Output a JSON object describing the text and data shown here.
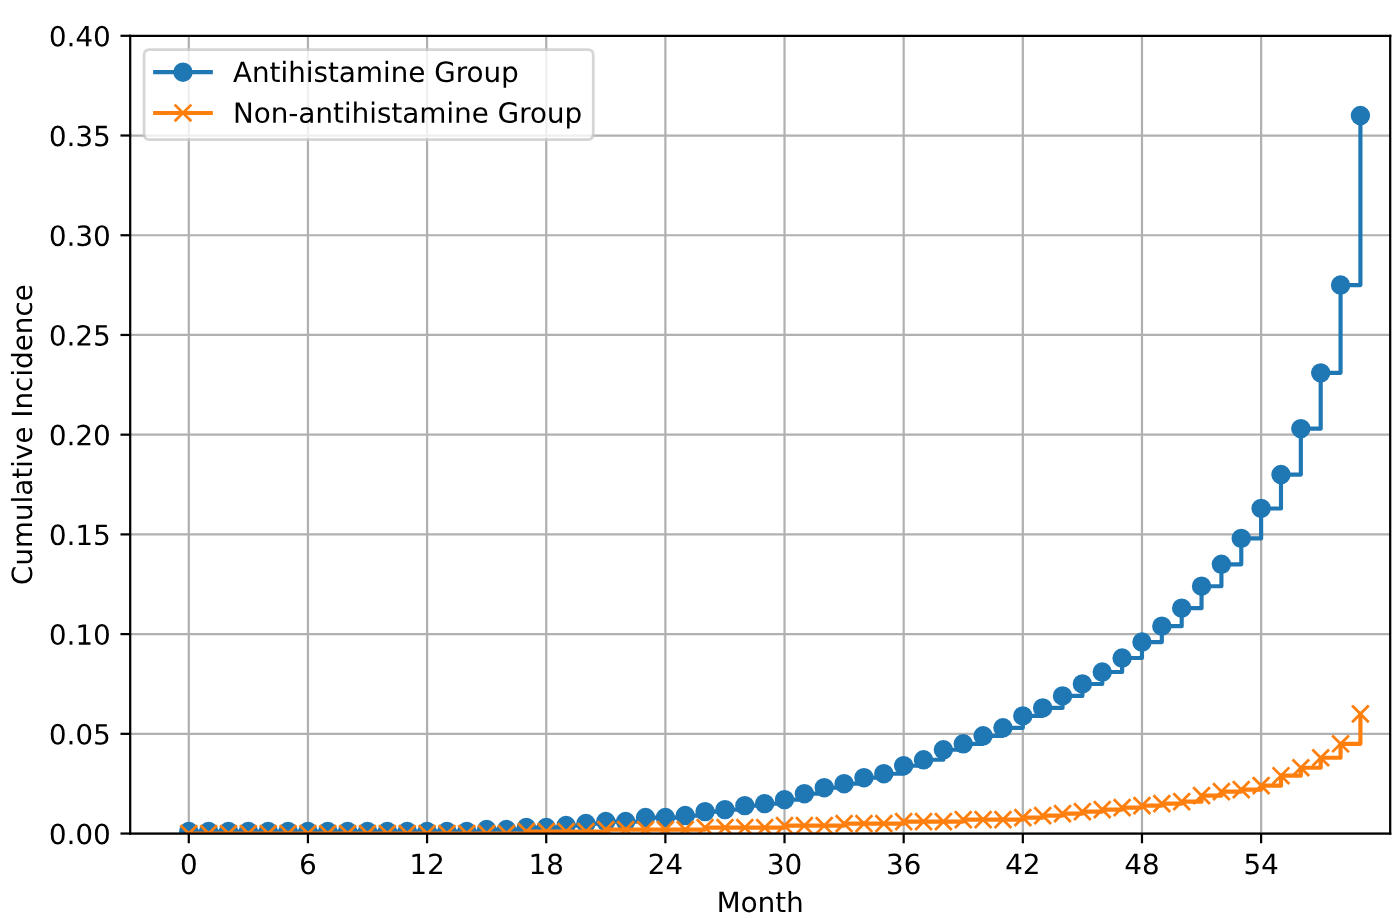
{
  "chart_data": {
    "type": "step",
    "xlabel": "Month",
    "ylabel": "Cumulative Incidence",
    "x": [
      0,
      1,
      2,
      3,
      4,
      5,
      6,
      7,
      8,
      9,
      10,
      11,
      12,
      13,
      14,
      15,
      16,
      17,
      18,
      19,
      20,
      21,
      22,
      23,
      24,
      25,
      26,
      27,
      28,
      29,
      30,
      31,
      32,
      33,
      34,
      35,
      36,
      37,
      38,
      39,
      40,
      41,
      42,
      43,
      44,
      45,
      46,
      47,
      48,
      49,
      50,
      51,
      52,
      53,
      54,
      55,
      56,
      57,
      58,
      59
    ],
    "series": [
      {
        "name": "Antihistamine Group",
        "color": "#1f77b4",
        "marker": "circle",
        "values": [
          0.001,
          0.001,
          0.001,
          0.001,
          0.001,
          0.001,
          0.001,
          0.001,
          0.001,
          0.001,
          0.001,
          0.001,
          0.001,
          0.001,
          0.001,
          0.002,
          0.002,
          0.003,
          0.003,
          0.004,
          0.005,
          0.006,
          0.006,
          0.008,
          0.008,
          0.009,
          0.011,
          0.012,
          0.014,
          0.015,
          0.017,
          0.02,
          0.023,
          0.025,
          0.028,
          0.03,
          0.034,
          0.037,
          0.042,
          0.045,
          0.049,
          0.053,
          0.059,
          0.063,
          0.069,
          0.075,
          0.081,
          0.088,
          0.096,
          0.104,
          0.113,
          0.124,
          0.135,
          0.148,
          0.163,
          0.18,
          0.203,
          0.231,
          0.275,
          0.36
        ]
      },
      {
        "name": "Non-antihistamine Group",
        "color": "#ff7f0e",
        "marker": "cross",
        "values": [
          0,
          0,
          0,
          0,
          0,
          0,
          0,
          0,
          0,
          0,
          0,
          0,
          0,
          0,
          0,
          0,
          0,
          0.001,
          0.001,
          0.001,
          0.001,
          0.002,
          0.002,
          0.002,
          0.002,
          0.002,
          0.003,
          0.003,
          0.003,
          0.003,
          0.004,
          0.004,
          0.004,
          0.005,
          0.005,
          0.005,
          0.006,
          0.006,
          0.006,
          0.007,
          0.007,
          0.007,
          0.008,
          0.009,
          0.01,
          0.011,
          0.012,
          0.013,
          0.014,
          0.015,
          0.016,
          0.019,
          0.021,
          0.022,
          0.024,
          0.029,
          0.033,
          0.038,
          0.045,
          0.06
        ]
      }
    ],
    "xlim": [
      -2.95,
      60.5
    ],
    "ylim": [
      0,
      0.4
    ],
    "xticks": [
      0,
      6,
      12,
      18,
      24,
      30,
      36,
      42,
      48,
      54
    ],
    "yticks": [
      {
        "value": 0,
        "label": "0.00"
      },
      {
        "value": 0.05,
        "label": "0.05"
      },
      {
        "value": 0.1,
        "label": "0.10"
      },
      {
        "value": 0.15,
        "label": "0.15"
      },
      {
        "value": 0.2,
        "label": "0.20"
      },
      {
        "value": 0.25,
        "label": "0.25"
      },
      {
        "value": 0.3,
        "label": "0.30"
      },
      {
        "value": 0.35,
        "label": "0.35"
      },
      {
        "value": 0.4,
        "label": "0.40"
      }
    ],
    "grid": true,
    "legend": "top left"
  }
}
